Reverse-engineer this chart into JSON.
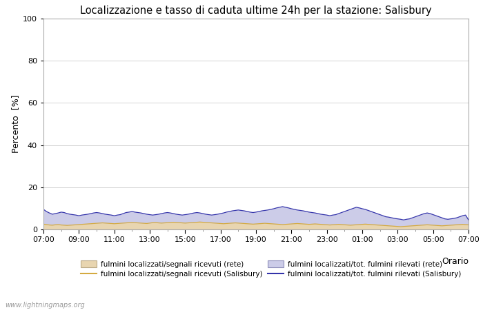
{
  "title": "Localizzazione e tasso di caduta ultime 24h per la stazione: Salisbury",
  "xlabel": "Orario",
  "ylabel": "Percento  [%]",
  "ylim": [
    0,
    100
  ],
  "yticks": [
    0,
    20,
    40,
    60,
    80,
    100
  ],
  "x_labels": [
    "07:00",
    "09:00",
    "11:00",
    "13:00",
    "15:00",
    "17:00",
    "19:00",
    "21:00",
    "23:00",
    "01:00",
    "03:00",
    "05:00",
    "07:00"
  ],
  "watermark": "www.lightningmaps.org",
  "fill_rete_color": "#e8d5b0",
  "fill_rete_edge": "#c8a878",
  "fill_salisbury_color": "#cccce8",
  "fill_salisbury_edge": "#9090cc",
  "line_rete_color": "#d4aa40",
  "line_salisbury_color": "#3333aa",
  "n_points": 145,
  "rete_fill_values": [
    2.5,
    2.3,
    2.1,
    2.0,
    2.2,
    2.3,
    2.1,
    2.0,
    1.9,
    2.0,
    2.1,
    2.2,
    2.3,
    2.4,
    2.5,
    2.6,
    2.7,
    2.8,
    2.9,
    3.0,
    3.1,
    3.0,
    2.9,
    2.8,
    2.7,
    2.8,
    2.9,
    3.0,
    3.1,
    3.2,
    3.3,
    3.2,
    3.1,
    3.0,
    2.9,
    2.8,
    3.0,
    3.2,
    3.3,
    3.1,
    3.0,
    3.1,
    3.2,
    3.3,
    3.4,
    3.3,
    3.2,
    3.1,
    3.0,
    3.1,
    3.2,
    3.3,
    3.4,
    3.5,
    3.4,
    3.3,
    3.2,
    3.1,
    3.0,
    2.9,
    2.8,
    2.7,
    2.8,
    2.9,
    3.0,
    3.1,
    3.0,
    2.9,
    2.8,
    2.7,
    2.6,
    2.5,
    2.6,
    2.7,
    2.8,
    2.9,
    2.8,
    2.7,
    2.6,
    2.5,
    2.4,
    2.3,
    2.4,
    2.5,
    2.6,
    2.7,
    2.8,
    2.7,
    2.6,
    2.5,
    2.4,
    2.5,
    2.6,
    2.5,
    2.4,
    2.3,
    2.2,
    2.1,
    2.2,
    2.3,
    2.4,
    2.3,
    2.2,
    2.1,
    2.0,
    2.1,
    2.2,
    2.3,
    2.4,
    2.5,
    2.4,
    2.3,
    2.2,
    2.1,
    2.0,
    1.9,
    1.8,
    1.7,
    1.6,
    1.5,
    1.4,
    1.3,
    1.4,
    1.5,
    1.6,
    1.7,
    1.8,
    1.9,
    2.0,
    2.1,
    2.2,
    2.1,
    2.0,
    1.9,
    1.8,
    1.7,
    1.8,
    1.9,
    2.0,
    2.1,
    2.2,
    2.3,
    2.4,
    2.3,
    2.2
  ],
  "salisbury_fill_values": [
    9.5,
    8.5,
    7.8,
    7.2,
    7.5,
    7.8,
    8.2,
    8.0,
    7.5,
    7.2,
    7.0,
    6.8,
    6.5,
    6.8,
    7.0,
    7.2,
    7.5,
    7.8,
    8.0,
    7.8,
    7.5,
    7.2,
    7.0,
    6.8,
    6.5,
    6.8,
    7.0,
    7.5,
    8.0,
    8.2,
    8.5,
    8.2,
    8.0,
    7.8,
    7.5,
    7.2,
    7.0,
    6.8,
    7.0,
    7.2,
    7.5,
    7.8,
    8.0,
    7.8,
    7.5,
    7.2,
    7.0,
    6.8,
    7.0,
    7.2,
    7.5,
    7.8,
    8.0,
    7.8,
    7.5,
    7.2,
    7.0,
    6.8,
    7.0,
    7.2,
    7.5,
    7.8,
    8.2,
    8.5,
    8.8,
    9.0,
    9.2,
    9.0,
    8.8,
    8.5,
    8.2,
    8.0,
    8.2,
    8.5,
    8.8,
    9.0,
    9.2,
    9.5,
    9.8,
    10.2,
    10.5,
    10.8,
    10.5,
    10.2,
    9.8,
    9.5,
    9.2,
    9.0,
    8.8,
    8.5,
    8.2,
    8.0,
    7.8,
    7.5,
    7.2,
    7.0,
    6.8,
    6.5,
    6.8,
    7.0,
    7.5,
    8.0,
    8.5,
    9.0,
    9.5,
    10.0,
    10.5,
    10.2,
    9.8,
    9.5,
    9.0,
    8.5,
    8.0,
    7.5,
    7.0,
    6.5,
    6.0,
    5.8,
    5.5,
    5.2,
    5.0,
    4.8,
    4.5,
    4.8,
    5.0,
    5.5,
    6.0,
    6.5,
    7.0,
    7.5,
    7.8,
    7.5,
    7.0,
    6.5,
    6.0,
    5.5,
    5.0,
    4.8,
    5.0,
    5.2,
    5.5,
    6.0,
    6.5,
    6.8,
    4.5
  ]
}
